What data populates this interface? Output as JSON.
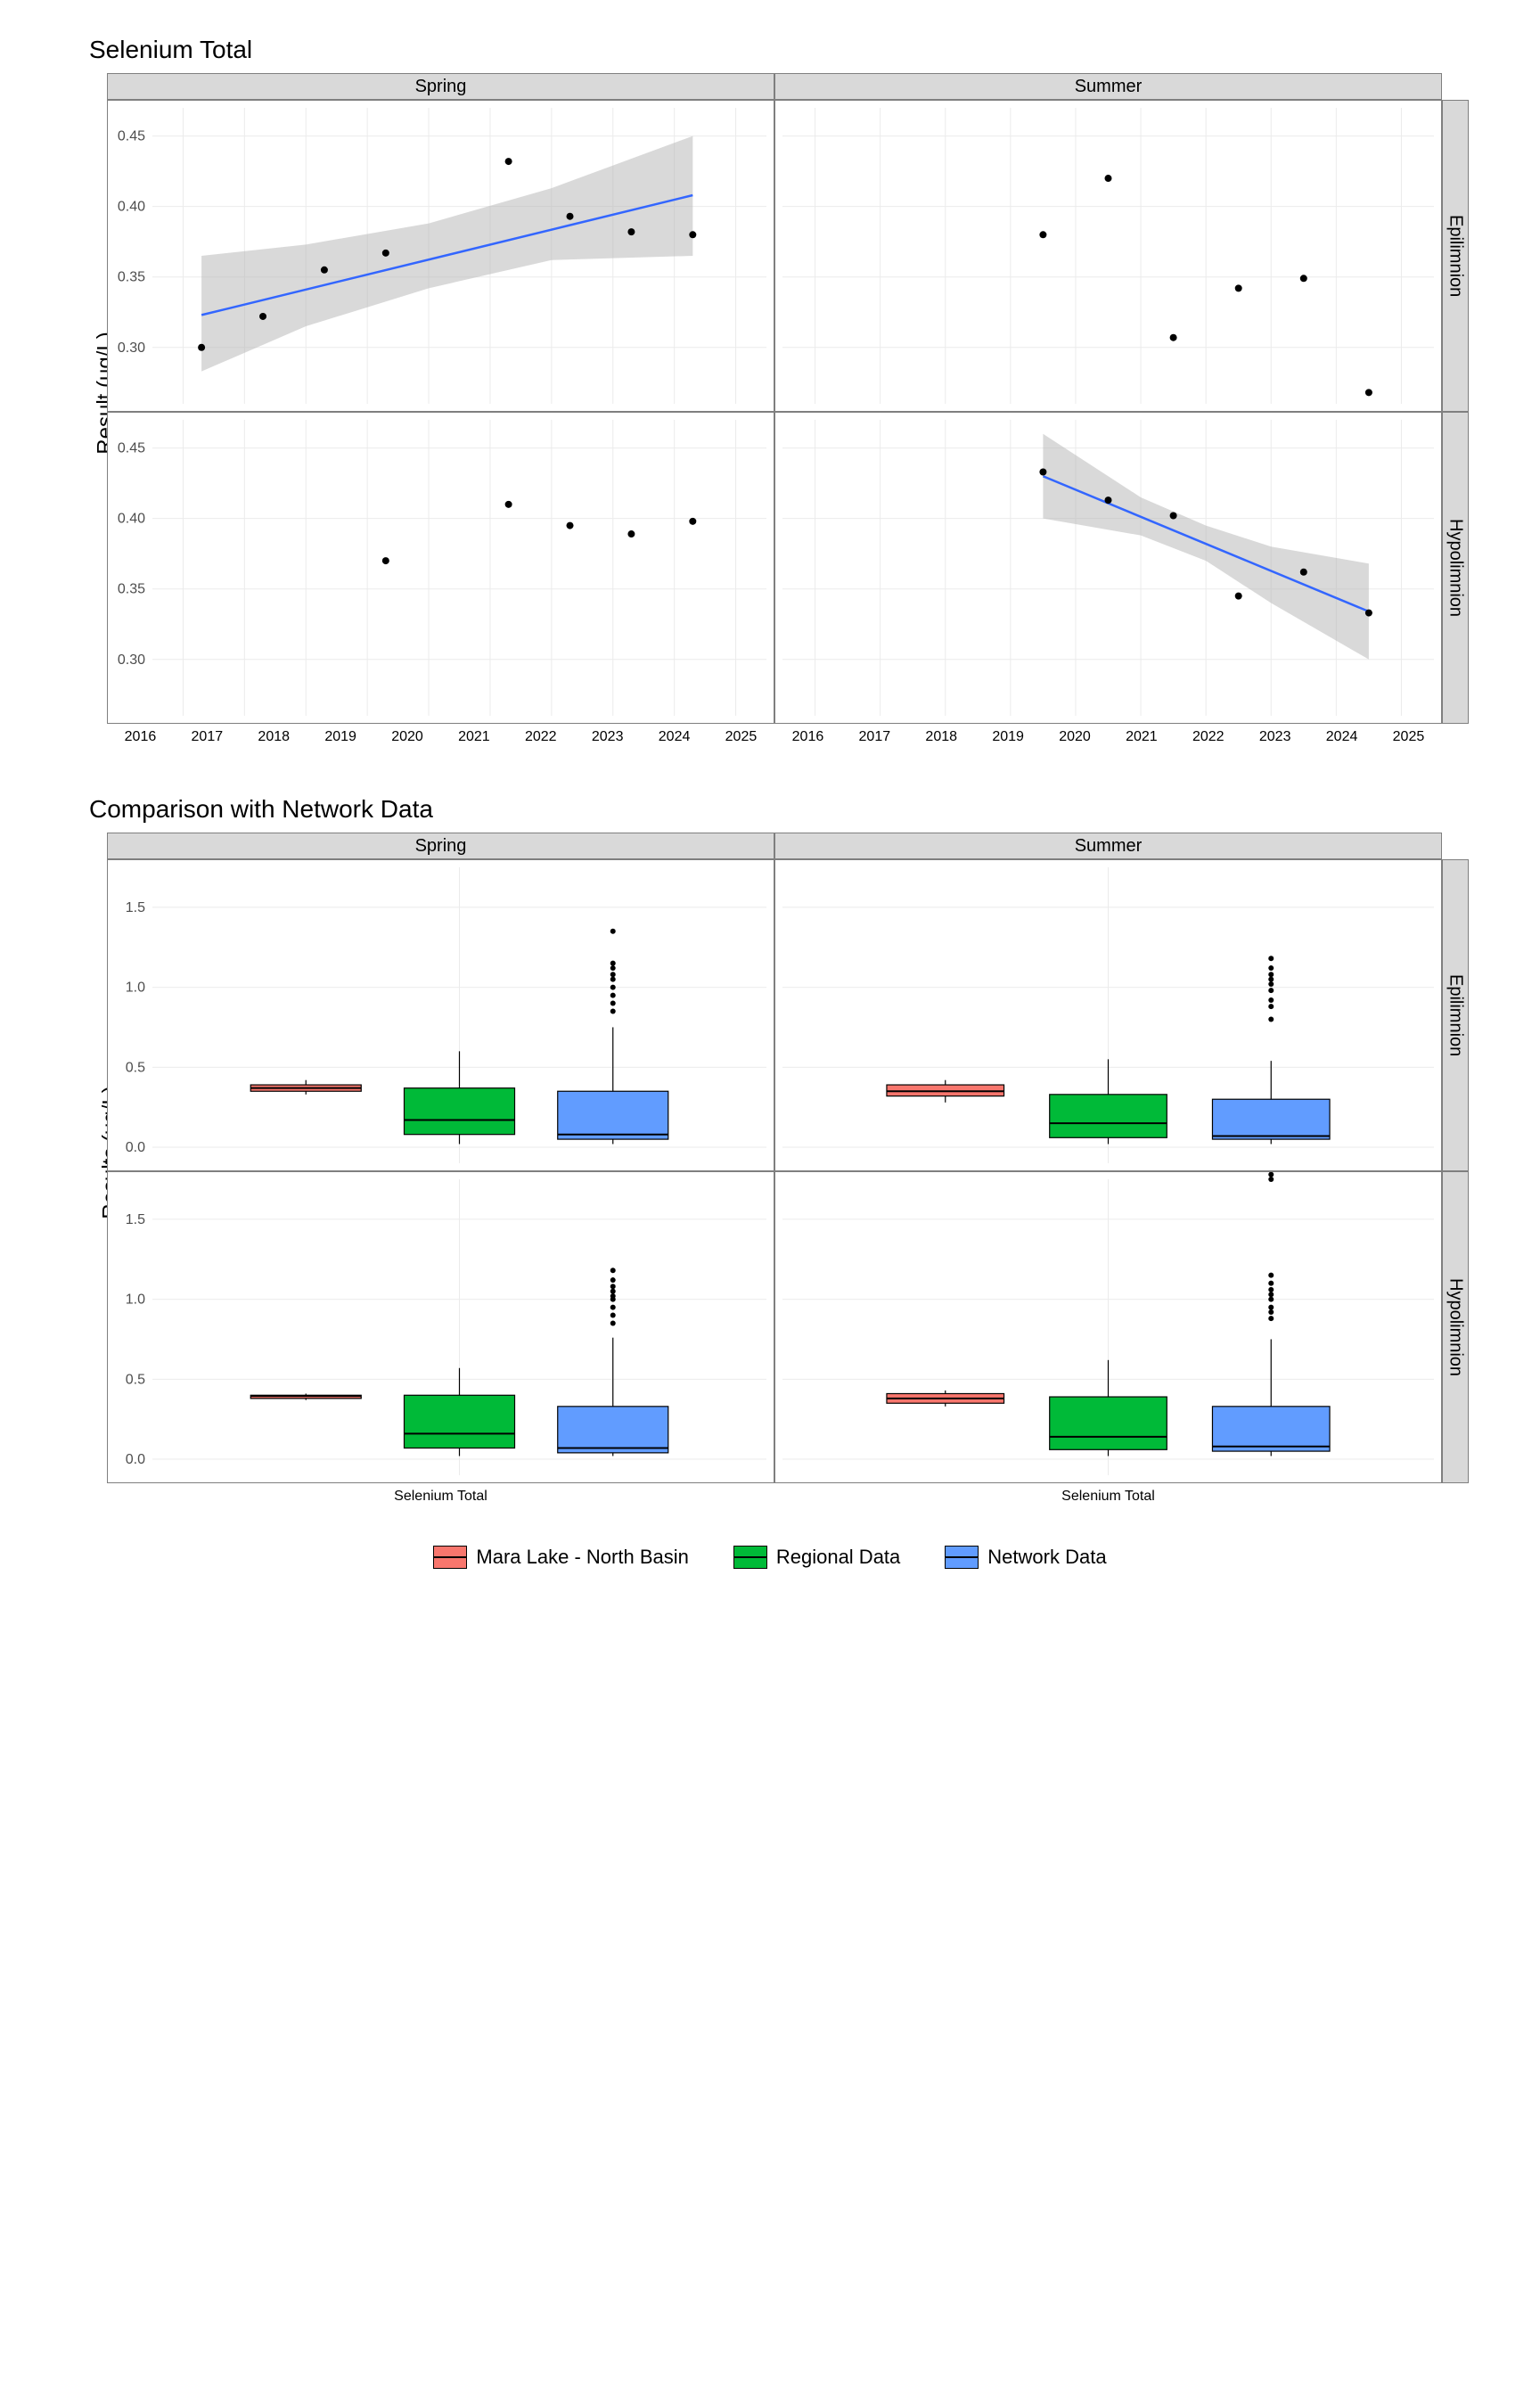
{
  "top_chart": {
    "title": "Selenium Total",
    "y_label": "Result (ug/L)",
    "col_facets": [
      "Spring",
      "Summer"
    ],
    "row_facets": [
      "Epilimnion",
      "Hypolimnion"
    ],
    "x_range": [
      2015.5,
      2025.5
    ],
    "y_range": [
      0.26,
      0.47
    ],
    "y_ticks": [
      0.3,
      0.35,
      0.4,
      0.45
    ],
    "x_ticks": [
      2016,
      2017,
      2018,
      2019,
      2020,
      2021,
      2022,
      2023,
      2024,
      2025
    ],
    "x_tick_labels": [
      "2016",
      "2017",
      "2018",
      "2019",
      "2020",
      "2021",
      "2022",
      "2023",
      "2024",
      "2025"
    ],
    "point_color": "#000000",
    "point_radius": 4,
    "line_color": "#3366ff",
    "line_width": 2.5,
    "ribbon_color": "#b3b3b3",
    "ribbon_opacity": 0.5,
    "grid_color": "#ebebeb",
    "panels": {
      "spring_epi": {
        "points": [
          [
            2016.3,
            0.3
          ],
          [
            2017.3,
            0.322
          ],
          [
            2018.3,
            0.355
          ],
          [
            2019.3,
            0.367
          ],
          [
            2021.3,
            0.432
          ],
          [
            2022.3,
            0.393
          ],
          [
            2023.3,
            0.382
          ],
          [
            2024.3,
            0.38
          ]
        ],
        "fit": {
          "x": [
            2016.3,
            2024.3
          ],
          "y": [
            0.323,
            0.408
          ],
          "ribbon": [
            [
              2016.3,
              0.283,
              0.365
            ],
            [
              2018.0,
              0.315,
              0.373
            ],
            [
              2020.0,
              0.342,
              0.388
            ],
            [
              2022.0,
              0.362,
              0.413
            ],
            [
              2024.3,
              0.365,
              0.45
            ]
          ]
        }
      },
      "summer_epi": {
        "points": [
          [
            2019.5,
            0.38
          ],
          [
            2020.5,
            0.42
          ],
          [
            2021.5,
            0.307
          ],
          [
            2022.5,
            0.342
          ],
          [
            2023.5,
            0.349
          ],
          [
            2024.5,
            0.268
          ]
        ]
      },
      "spring_hypo": {
        "points": [
          [
            2019.3,
            0.37
          ],
          [
            2021.3,
            0.41
          ],
          [
            2022.3,
            0.395
          ],
          [
            2023.3,
            0.389
          ],
          [
            2024.3,
            0.398
          ]
        ]
      },
      "summer_hypo": {
        "points": [
          [
            2019.5,
            0.433
          ],
          [
            2020.5,
            0.413
          ],
          [
            2021.5,
            0.402
          ],
          [
            2022.5,
            0.345
          ],
          [
            2023.5,
            0.362
          ],
          [
            2024.5,
            0.333
          ]
        ],
        "fit": {
          "x": [
            2019.5,
            2024.5
          ],
          "y": [
            0.43,
            0.334
          ],
          "ribbon": [
            [
              2019.5,
              0.4,
              0.46
            ],
            [
              2021.0,
              0.388,
              0.415
            ],
            [
              2022.0,
              0.37,
              0.395
            ],
            [
              2023.0,
              0.34,
              0.38
            ],
            [
              2024.5,
              0.3,
              0.368
            ]
          ]
        }
      }
    }
  },
  "bottom_chart": {
    "title": "Comparison with Network Data",
    "y_label": "Results (ug/L)",
    "col_facets": [
      "Spring",
      "Summer"
    ],
    "row_facets": [
      "Epilimnion",
      "Hypolimnion"
    ],
    "y_range": [
      -0.1,
      1.75
    ],
    "y_ticks": [
      0.0,
      0.5,
      1.0,
      1.5
    ],
    "x_tick_label": "Selenium Total",
    "grid_color": "#ebebeb",
    "box_border": "#000000",
    "series": [
      {
        "name": "Mara Lake - North Basin",
        "color": "#f8766d"
      },
      {
        "name": "Regional Data",
        "color": "#00ba38"
      },
      {
        "name": "Network Data",
        "color": "#619cff"
      }
    ],
    "panels": {
      "spring_epi": {
        "boxes": [
          {
            "x": 0.25,
            "min": 0.33,
            "q1": 0.35,
            "med": 0.37,
            "q3": 0.39,
            "max": 0.42,
            "outliers": []
          },
          {
            "x": 0.5,
            "min": 0.02,
            "q1": 0.08,
            "med": 0.17,
            "q3": 0.37,
            "max": 0.6,
            "outliers": []
          },
          {
            "x": 0.75,
            "min": 0.02,
            "q1": 0.05,
            "med": 0.08,
            "q3": 0.35,
            "max": 0.75,
            "outliers": [
              0.85,
              0.9,
              0.95,
              1.0,
              1.05,
              1.08,
              1.12,
              1.15,
              1.35
            ]
          }
        ]
      },
      "summer_epi": {
        "boxes": [
          {
            "x": 0.25,
            "min": 0.28,
            "q1": 0.32,
            "med": 0.35,
            "q3": 0.39,
            "max": 0.42,
            "outliers": []
          },
          {
            "x": 0.5,
            "min": 0.02,
            "q1": 0.06,
            "med": 0.15,
            "q3": 0.33,
            "max": 0.55,
            "outliers": []
          },
          {
            "x": 0.75,
            "min": 0.02,
            "q1": 0.05,
            "med": 0.07,
            "q3": 0.3,
            "max": 0.54,
            "outliers": [
              0.8,
              0.88,
              0.92,
              0.98,
              1.02,
              1.05,
              1.08,
              1.12,
              1.18
            ]
          }
        ]
      },
      "spring_hypo": {
        "boxes": [
          {
            "x": 0.25,
            "min": 0.37,
            "q1": 0.38,
            "med": 0.395,
            "q3": 0.4,
            "max": 0.41,
            "outliers": []
          },
          {
            "x": 0.5,
            "min": 0.02,
            "q1": 0.07,
            "med": 0.16,
            "q3": 0.4,
            "max": 0.57,
            "outliers": []
          },
          {
            "x": 0.75,
            "min": 0.02,
            "q1": 0.04,
            "med": 0.07,
            "q3": 0.33,
            "max": 0.76,
            "outliers": [
              0.85,
              0.9,
              0.95,
              1.0,
              1.02,
              1.05,
              1.08,
              1.12,
              1.18
            ]
          }
        ]
      },
      "summer_hypo": {
        "boxes": [
          {
            "x": 0.25,
            "min": 0.33,
            "q1": 0.35,
            "med": 0.38,
            "q3": 0.41,
            "max": 0.43,
            "outliers": []
          },
          {
            "x": 0.5,
            "min": 0.02,
            "q1": 0.06,
            "med": 0.14,
            "q3": 0.39,
            "max": 0.62,
            "outliers": []
          },
          {
            "x": 0.75,
            "min": 0.02,
            "q1": 0.05,
            "med": 0.08,
            "q3": 0.33,
            "max": 0.75,
            "outliers": [
              0.88,
              0.92,
              0.95,
              1.0,
              1.03,
              1.06,
              1.1,
              1.15,
              1.75,
              1.78
            ]
          }
        ]
      }
    }
  }
}
